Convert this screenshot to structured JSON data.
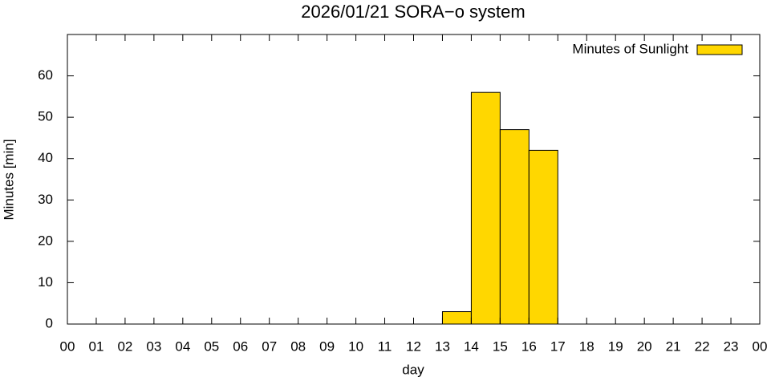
{
  "chart_data": {
    "type": "bar",
    "title": "2026/01/21 SORA−o system",
    "x_label": "day",
    "y_label": "Minutes [min]",
    "x": [
      0,
      1,
      2,
      3,
      4,
      5,
      6,
      7,
      8,
      9,
      10,
      11,
      12,
      13,
      14,
      15,
      16,
      17,
      18,
      19,
      20,
      21,
      22,
      23
    ],
    "series": [
      {
        "name": "Minutes of Sunlight",
        "color": "#ffd700",
        "values": [
          0,
          0,
          0,
          0,
          0,
          0,
          0,
          0,
          0,
          0,
          0,
          0,
          0,
          3,
          56,
          47,
          42,
          0,
          0,
          0,
          0,
          0,
          0,
          0
        ]
      }
    ],
    "xlim": [
      -0.5,
      23.5
    ],
    "xticks": [
      {
        "value": -0.5,
        "label": "00"
      },
      {
        "value": 0.5,
        "label": "01"
      },
      {
        "value": 1.5,
        "label": "02"
      },
      {
        "value": 2.5,
        "label": "03"
      },
      {
        "value": 3.5,
        "label": "04"
      },
      {
        "value": 4.5,
        "label": "05"
      },
      {
        "value": 5.5,
        "label": "06"
      },
      {
        "value": 6.5,
        "label": "07"
      },
      {
        "value": 7.5,
        "label": "08"
      },
      {
        "value": 8.5,
        "label": "09"
      },
      {
        "value": 9.5,
        "label": "10"
      },
      {
        "value": 10.5,
        "label": "11"
      },
      {
        "value": 11.5,
        "label": "12"
      },
      {
        "value": 12.5,
        "label": "13"
      },
      {
        "value": 13.5,
        "label": "14"
      },
      {
        "value": 14.5,
        "label": "15"
      },
      {
        "value": 15.5,
        "label": "16"
      },
      {
        "value": 16.5,
        "label": "17"
      },
      {
        "value": 17.5,
        "label": "18"
      },
      {
        "value": 18.5,
        "label": "19"
      },
      {
        "value": 19.5,
        "label": "20"
      },
      {
        "value": 20.5,
        "label": "21"
      },
      {
        "value": 21.5,
        "label": "22"
      },
      {
        "value": 22.5,
        "label": "23"
      },
      {
        "value": 23.5,
        "label": "00"
      }
    ],
    "ylim": [
      0,
      70
    ],
    "yticks": [
      0,
      10,
      20,
      30,
      40,
      50,
      60
    ],
    "legend": "top-right",
    "grid": false
  }
}
